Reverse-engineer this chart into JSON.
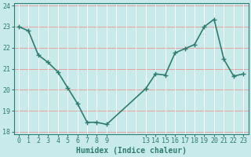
{
  "x": [
    0,
    1,
    2,
    3,
    4,
    5,
    6,
    7,
    8,
    9,
    13,
    14,
    15,
    16,
    17,
    18,
    19,
    20,
    21,
    22,
    23
  ],
  "y": [
    23.0,
    22.8,
    21.65,
    21.3,
    20.85,
    20.1,
    19.35,
    18.45,
    18.45,
    18.35,
    20.05,
    20.75,
    20.7,
    21.75,
    21.95,
    22.15,
    23.0,
    23.35,
    21.45,
    20.65,
    20.75
  ],
  "line_color": "#2e7d6e",
  "marker": "+",
  "marker_size": 4,
  "bg_color": "#c8eaea",
  "grid_color": "#b0d8d8",
  "tick_color": "#2e7d6e",
  "xlabel": "Humidex (Indice chaleur)",
  "xlim": [
    -0.5,
    23.5
  ],
  "ylim": [
    17.9,
    24.1
  ],
  "yticks": [
    18,
    19,
    20,
    21,
    22,
    23,
    24
  ],
  "xtick_positions": [
    0,
    1,
    2,
    3,
    4,
    5,
    6,
    7,
    8,
    9,
    13,
    14,
    15,
    16,
    17,
    18,
    19,
    20,
    21,
    22,
    23
  ],
  "xtick_labels": [
    "0",
    "1",
    "2",
    "3",
    "4",
    "5",
    "6",
    "7",
    "8",
    "9",
    "13",
    "14",
    "15",
    "16",
    "17",
    "18",
    "19",
    "20",
    "21",
    "22",
    "23"
  ],
  "font_color": "#2e7d6e",
  "line_width": 1.2,
  "marker_color": "#2e7d6e",
  "grid_red_color": "#e8a0a0",
  "grid_white_color": "#ffffff"
}
